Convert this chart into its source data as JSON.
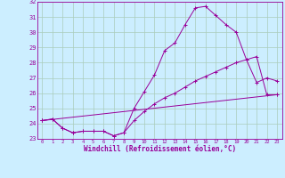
{
  "xlabel": "Windchill (Refroidissement éolien,°C)",
  "bg_color": "#cceeff",
  "line_color": "#990099",
  "grid_color": "#aaccbb",
  "xlim": [
    -0.5,
    23.5
  ],
  "ylim": [
    23,
    32
  ],
  "yticks": [
    23,
    24,
    25,
    26,
    27,
    28,
    29,
    30,
    31,
    32
  ],
  "xticks": [
    0,
    1,
    2,
    3,
    4,
    5,
    6,
    7,
    8,
    9,
    10,
    11,
    12,
    13,
    14,
    15,
    16,
    17,
    18,
    19,
    20,
    21,
    22,
    23
  ],
  "series1_x": [
    0,
    1,
    2,
    3,
    4,
    5,
    6,
    7,
    8,
    9,
    10,
    11,
    12,
    13,
    14,
    15,
    16,
    17,
    18,
    19,
    20,
    21,
    22,
    23
  ],
  "series1_y": [
    24.2,
    24.3,
    23.7,
    23.4,
    23.5,
    23.5,
    23.5,
    23.2,
    23.4,
    25.0,
    26.1,
    27.2,
    28.8,
    29.3,
    30.5,
    31.6,
    31.7,
    31.1,
    30.5,
    30.0,
    28.2,
    26.7,
    27.0,
    26.8
  ],
  "series2_x": [
    0,
    1,
    2,
    3,
    4,
    5,
    6,
    7,
    8,
    9,
    10,
    11,
    12,
    13,
    14,
    15,
    16,
    17,
    18,
    19,
    20,
    21,
    22,
    23
  ],
  "series2_y": [
    24.2,
    24.3,
    23.7,
    23.4,
    23.5,
    23.5,
    23.5,
    23.2,
    23.4,
    24.2,
    24.8,
    25.3,
    25.7,
    26.0,
    26.4,
    26.8,
    27.1,
    27.4,
    27.7,
    28.0,
    28.2,
    28.4,
    25.9,
    25.9
  ],
  "series3_x": [
    0,
    23
  ],
  "series3_y": [
    24.2,
    25.9
  ]
}
